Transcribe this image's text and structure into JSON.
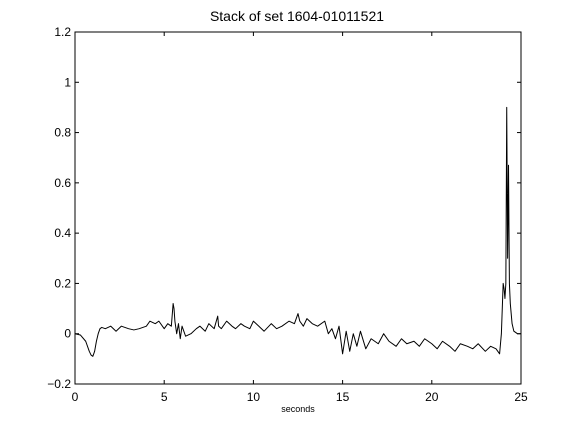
{
  "chart_data": {
    "type": "line",
    "title": "Stack of set 1604-01011521",
    "xlabel": "seconds",
    "ylabel": "",
    "xlim": [
      0,
      25
    ],
    "ylim": [
      -0.2,
      1.2
    ],
    "xticks": [
      0,
      5,
      10,
      15,
      20,
      25
    ],
    "yticks": [
      -0.2,
      0,
      0.2,
      0.4,
      0.6,
      0.8,
      1,
      1.2
    ],
    "xtick_labels": [
      "0",
      "5",
      "10",
      "15",
      "20",
      "25"
    ],
    "ytick_labels": [
      "−0.2",
      "0",
      "0.2",
      "0.4",
      "0.6",
      "0.8",
      "1",
      "1.2"
    ],
    "grid": false,
    "line_color": "#000000",
    "series": [
      {
        "x": [
          0,
          0.3,
          0.6,
          0.8,
          0.9,
          1.0,
          1.1,
          1.2,
          1.3,
          1.4,
          1.5,
          1.7,
          2.0,
          2.3,
          2.6,
          3.0,
          3.3,
          3.6,
          4.0,
          4.2,
          4.5,
          4.7,
          5.0,
          5.2,
          5.4,
          5.5,
          5.55,
          5.6,
          5.7,
          5.8,
          5.9,
          6.0,
          6.2,
          6.5,
          6.8,
          7.0,
          7.3,
          7.5,
          7.8,
          8.0,
          8.05,
          8.2,
          8.5,
          8.8,
          9.0,
          9.3,
          9.5,
          9.8,
          10.0,
          10.3,
          10.6,
          11.0,
          11.3,
          11.6,
          12.0,
          12.3,
          12.5,
          12.6,
          12.8,
          13.0,
          13.3,
          13.6,
          14.0,
          14.2,
          14.4,
          14.6,
          14.8,
          15.0,
          15.2,
          15.4,
          15.6,
          15.8,
          16.0,
          16.3,
          16.6,
          17.0,
          17.3,
          17.6,
          18.0,
          18.3,
          18.6,
          19.0,
          19.3,
          19.6,
          20.0,
          20.3,
          20.6,
          21.0,
          21.3,
          21.6,
          22.0,
          22.3,
          22.6,
          23.0,
          23.3,
          23.6,
          23.8,
          23.9,
          24.0,
          24.05,
          24.1,
          24.15,
          24.2,
          24.25,
          24.3,
          24.35,
          24.4,
          24.5,
          24.6,
          24.8,
          25.0
        ],
        "y": [
          0,
          -0.005,
          -0.03,
          -0.07,
          -0.085,
          -0.09,
          -0.07,
          -0.03,
          0.0,
          0.02,
          0.025,
          0.02,
          0.03,
          0.01,
          0.03,
          0.02,
          0.015,
          0.02,
          0.03,
          0.05,
          0.04,
          0.05,
          0.02,
          0.04,
          0.03,
          0.12,
          0.1,
          0.05,
          0.0,
          0.04,
          -0.02,
          0.03,
          -0.01,
          0.0,
          0.02,
          0.03,
          0.01,
          0.04,
          0.02,
          0.07,
          0.03,
          0.02,
          0.05,
          0.03,
          0.02,
          0.04,
          0.03,
          0.02,
          0.05,
          0.03,
          0.01,
          0.04,
          0.02,
          0.03,
          0.05,
          0.04,
          0.08,
          0.05,
          0.03,
          0.06,
          0.04,
          0.03,
          0.05,
          0.0,
          0.02,
          -0.02,
          0.03,
          -0.08,
          0.01,
          -0.07,
          0.0,
          -0.05,
          0.01,
          -0.06,
          -0.02,
          -0.04,
          0.0,
          -0.03,
          -0.05,
          -0.02,
          -0.04,
          -0.03,
          -0.05,
          -0.02,
          -0.04,
          -0.06,
          -0.03,
          -0.05,
          -0.07,
          -0.04,
          -0.05,
          -0.06,
          -0.04,
          -0.07,
          -0.05,
          -0.06,
          -0.08,
          0.0,
          0.2,
          0.18,
          0.14,
          0.2,
          0.9,
          0.3,
          0.67,
          0.2,
          0.12,
          0.04,
          0.01,
          0.0,
          0.0
        ]
      }
    ]
  }
}
